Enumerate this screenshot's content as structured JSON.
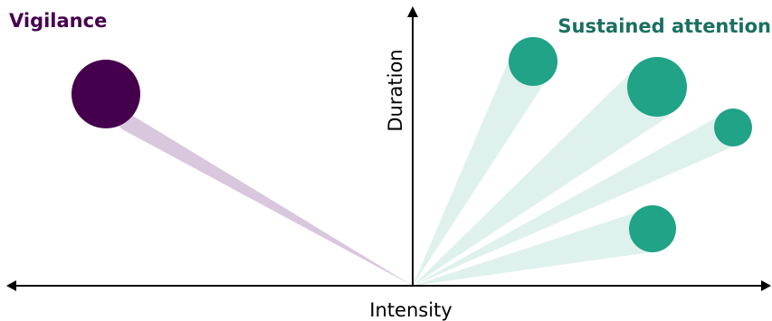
{
  "diagram": {
    "labels": {
      "vigilance": "Vigilance",
      "sustained_attention": "Sustained attention",
      "x_axis": "Intensity",
      "y_axis": "Duration"
    },
    "colors": {
      "vigilance_dot": "#45004d",
      "vigilance_beam": "#d9c7de",
      "sustained_dot": "#20a386",
      "sustained_beam": "#dff1ec",
      "sustained_text": "#1a7060",
      "axis": "#000000"
    }
  }
}
